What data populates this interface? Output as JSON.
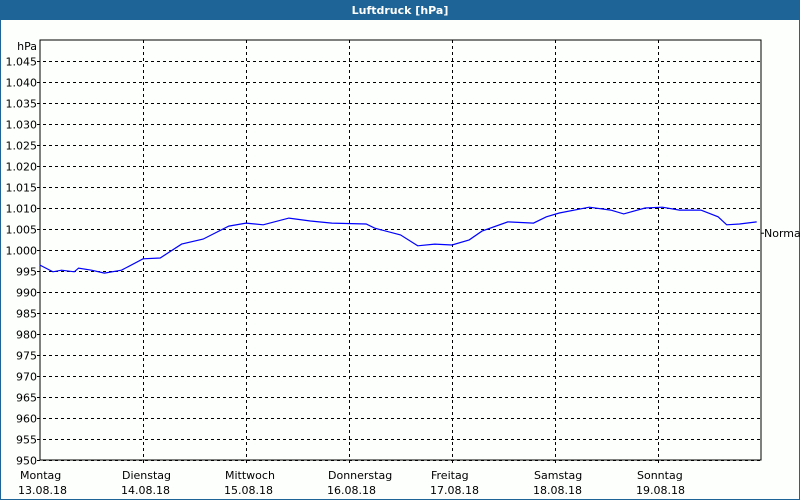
{
  "title": "Luftdruck [hPa]",
  "chart_data": {
    "type": "line",
    "title": "Luftdruck [hPa]",
    "ylabel": "hPa",
    "ylim": [
      950,
      1050
    ],
    "yticks": [
      950,
      955,
      960,
      965,
      970,
      975,
      980,
      985,
      990,
      995,
      1000,
      1005,
      1010,
      1015,
      1020,
      1025,
      1030,
      1035,
      1040,
      1045
    ],
    "ytick_labels": [
      "950",
      "955",
      "960",
      "965",
      "970",
      "975",
      "980",
      "985",
      "990",
      "995",
      "1.000",
      "1.005",
      "1.010",
      "1.015",
      "1.020",
      "1.025",
      "1.030",
      "1.035",
      "1.040",
      "1.045"
    ],
    "xlim": [
      "2018-08-13T00:00",
      "2018-08-20T00:00"
    ],
    "xticks": [
      {
        "day": "Montag",
        "date": "13.08.18"
      },
      {
        "day": "Dienstag",
        "date": "14.08.18"
      },
      {
        "day": "Mittwoch",
        "date": "15.08.18"
      },
      {
        "day": "Donnerstag",
        "date": "16.08.18"
      },
      {
        "day": "Freitag",
        "date": "17.08.18"
      },
      {
        "day": "Samstag",
        "date": "18.08.18"
      },
      {
        "day": "Sonntag",
        "date": "19.08.18"
      }
    ],
    "grid": true,
    "reference": {
      "label": "Normal",
      "value": 1004
    },
    "series": [
      {
        "color": "#0000ff",
        "points": [
          [
            "2018-08-13T00:00",
            996.4
          ],
          [
            "2018-08-13T03:00",
            994.8
          ],
          [
            "2018-08-13T05:00",
            995.2
          ],
          [
            "2018-08-13T08:00",
            994.8
          ],
          [
            "2018-08-13T09:00",
            995.7
          ],
          [
            "2018-08-13T12:00",
            995.2
          ],
          [
            "2018-08-13T15:00",
            994.5
          ],
          [
            "2018-08-13T19:00",
            995.2
          ],
          [
            "2018-08-14T00:00",
            997.9
          ],
          [
            "2018-08-14T04:00",
            998.1
          ],
          [
            "2018-08-14T09:00",
            1001.4
          ],
          [
            "2018-08-14T14:00",
            1002.6
          ],
          [
            "2018-08-14T20:00",
            1005.7
          ],
          [
            "2018-08-15T00:00",
            1006.4
          ],
          [
            "2018-08-15T04:00",
            1006.0
          ],
          [
            "2018-08-15T10:00",
            1007.6
          ],
          [
            "2018-08-15T15:00",
            1006.9
          ],
          [
            "2018-08-15T20:00",
            1006.4
          ],
          [
            "2018-08-16T04:00",
            1006.2
          ],
          [
            "2018-08-16T06:00",
            1005.2
          ],
          [
            "2018-08-16T12:00",
            1003.6
          ],
          [
            "2018-08-16T16:00",
            1001.0
          ],
          [
            "2018-08-16T20:00",
            1001.4
          ],
          [
            "2018-08-17T00:00",
            1001.2
          ],
          [
            "2018-08-17T04:00",
            1002.4
          ],
          [
            "2018-08-17T07:00",
            1004.5
          ],
          [
            "2018-08-17T13:00",
            1006.7
          ],
          [
            "2018-08-17T19:00",
            1006.4
          ],
          [
            "2018-08-17T22:00",
            1007.9
          ],
          [
            "2018-08-18T01:00",
            1008.8
          ],
          [
            "2018-08-18T08:00",
            1010.2
          ],
          [
            "2018-08-18T13:00",
            1009.5
          ],
          [
            "2018-08-18T16:00",
            1008.6
          ],
          [
            "2018-08-18T21:00",
            1010.0
          ],
          [
            "2018-08-19T01:00",
            1010.2
          ],
          [
            "2018-08-19T05:00",
            1009.5
          ],
          [
            "2018-08-19T10:00",
            1009.5
          ],
          [
            "2018-08-19T14:00",
            1007.9
          ],
          [
            "2018-08-19T16:00",
            1006.0
          ],
          [
            "2018-08-19T19:00",
            1006.2
          ],
          [
            "2018-08-19T23:00",
            1006.7
          ]
        ]
      }
    ]
  }
}
